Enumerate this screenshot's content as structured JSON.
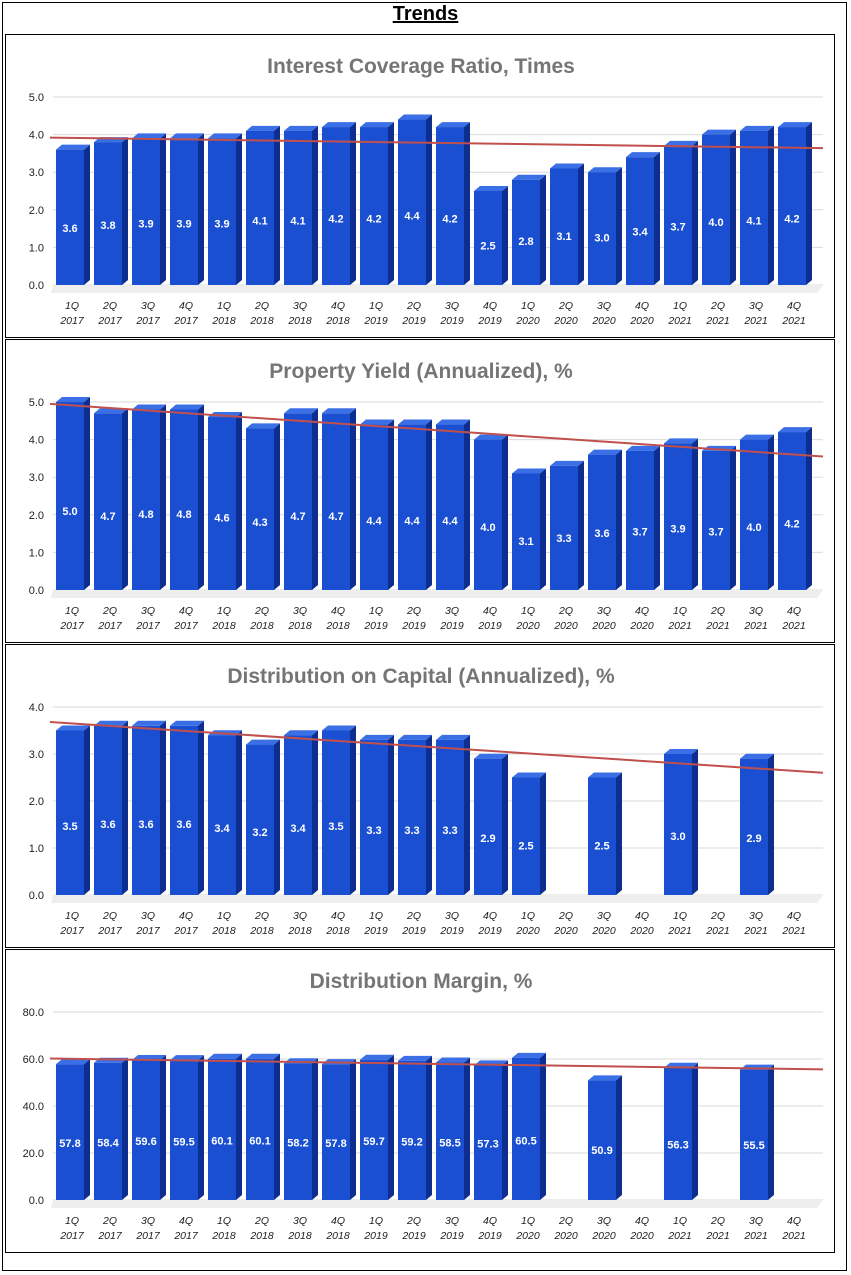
{
  "page": {
    "title": "Trends"
  },
  "categories": [
    [
      "1Q",
      "2017"
    ],
    [
      "2Q",
      "2017"
    ],
    [
      "3Q",
      "2017"
    ],
    [
      "4Q",
      "2017"
    ],
    [
      "1Q",
      "2018"
    ],
    [
      "2Q",
      "2018"
    ],
    [
      "3Q",
      "2018"
    ],
    [
      "4Q",
      "2018"
    ],
    [
      "1Q",
      "2019"
    ],
    [
      "2Q",
      "2019"
    ],
    [
      "3Q",
      "2019"
    ],
    [
      "4Q",
      "2019"
    ],
    [
      "1Q",
      "2020"
    ],
    [
      "2Q",
      "2020"
    ],
    [
      "3Q",
      "2020"
    ],
    [
      "4Q",
      "2020"
    ],
    [
      "1Q",
      "2021"
    ],
    [
      "2Q",
      "2021"
    ],
    [
      "3Q",
      "2021"
    ],
    [
      "4Q",
      "2021"
    ]
  ],
  "colors": {
    "bar": "#1a4fd1",
    "bar_side": "#0d2e8f",
    "bar_top": "#3b6fe6",
    "trend": "#c0504d",
    "grid": "#d9d9d9"
  },
  "chart_data": [
    {
      "type": "bar",
      "title": "Interest Coverage Ratio, Times",
      "y_ticks": [
        "0.0",
        "1.0",
        "2.0",
        "3.0",
        "4.0",
        "5.0"
      ],
      "ylim": [
        0,
        5
      ],
      "labels": [
        "3.6",
        "3.8",
        "3.9",
        "3.9",
        "3.9",
        "4.1",
        "4.1",
        "4.2",
        "4.2",
        "4.4",
        "4.2",
        "2.5",
        "2.8",
        "3.1",
        "3.0",
        "3.4",
        "3.7",
        "4.0",
        "4.1",
        "4.2"
      ],
      "values": [
        3.6,
        3.8,
        3.9,
        3.9,
        3.9,
        4.1,
        4.1,
        4.2,
        4.2,
        4.4,
        4.2,
        2.5,
        2.8,
        3.1,
        3.0,
        3.4,
        3.7,
        4.0,
        4.1,
        4.2
      ],
      "trendline": [
        3.92,
        3.64
      ]
    },
    {
      "type": "bar",
      "title": "Property Yield (Annualized), %",
      "y_ticks": [
        "0.0",
        "1.0",
        "2.0",
        "3.0",
        "4.0",
        "5.0"
      ],
      "ylim": [
        0,
        5
      ],
      "labels": [
        "5.0",
        "4.7",
        "4.8",
        "4.8",
        "4.6",
        "4.3",
        "4.7",
        "4.7",
        "4.4",
        "4.4",
        "4.4",
        "4.0",
        "3.1",
        "3.3",
        "3.6",
        "3.7",
        "3.9",
        "3.7",
        "4.0",
        "4.2"
      ],
      "values": [
        5.0,
        4.7,
        4.8,
        4.8,
        4.6,
        4.3,
        4.7,
        4.7,
        4.4,
        4.4,
        4.4,
        4.0,
        3.1,
        3.3,
        3.6,
        3.7,
        3.9,
        3.7,
        4.0,
        4.2
      ],
      "trendline": [
        4.95,
        3.55
      ]
    },
    {
      "type": "bar",
      "title": "Distribution on Capital (Annualized), %",
      "y_ticks": [
        "0.0",
        "1.0",
        "2.0",
        "3.0",
        "4.0"
      ],
      "ylim": [
        0,
        4
      ],
      "labels": [
        "3.5",
        "3.6",
        "3.6",
        "3.6",
        "3.4",
        "3.2",
        "3.4",
        "3.5",
        "3.3",
        "3.3",
        "3.3",
        "2.9",
        "2.5",
        null,
        "2.5",
        null,
        "3.0",
        null,
        "2.9",
        null
      ],
      "values": [
        3.5,
        3.6,
        3.6,
        3.6,
        3.4,
        3.2,
        3.4,
        3.5,
        3.3,
        3.3,
        3.3,
        2.9,
        2.5,
        null,
        2.5,
        null,
        3.0,
        null,
        2.9,
        null
      ],
      "trendline": [
        3.68,
        2.6
      ]
    },
    {
      "type": "bar",
      "title": "Distribution Margin, %",
      "y_ticks": [
        "0.0",
        "20.0",
        "40.0",
        "60.0",
        "80.0"
      ],
      "ylim": [
        0,
        80
      ],
      "labels": [
        "57.8",
        "58.4",
        "59.6",
        "59.5",
        "60.1",
        "60.1",
        "58.2",
        "57.8",
        "59.7",
        "59.2",
        "58.5",
        "57.3",
        "60.5",
        null,
        "50.9",
        null,
        "56.3",
        null,
        "55.5",
        null
      ],
      "values": [
        57.8,
        58.4,
        59.6,
        59.5,
        60.1,
        60.1,
        58.2,
        57.8,
        59.7,
        59.2,
        58.5,
        57.3,
        60.5,
        null,
        50.9,
        null,
        56.3,
        null,
        55.5,
        null
      ],
      "trendline": [
        60.2,
        55.6
      ]
    }
  ]
}
